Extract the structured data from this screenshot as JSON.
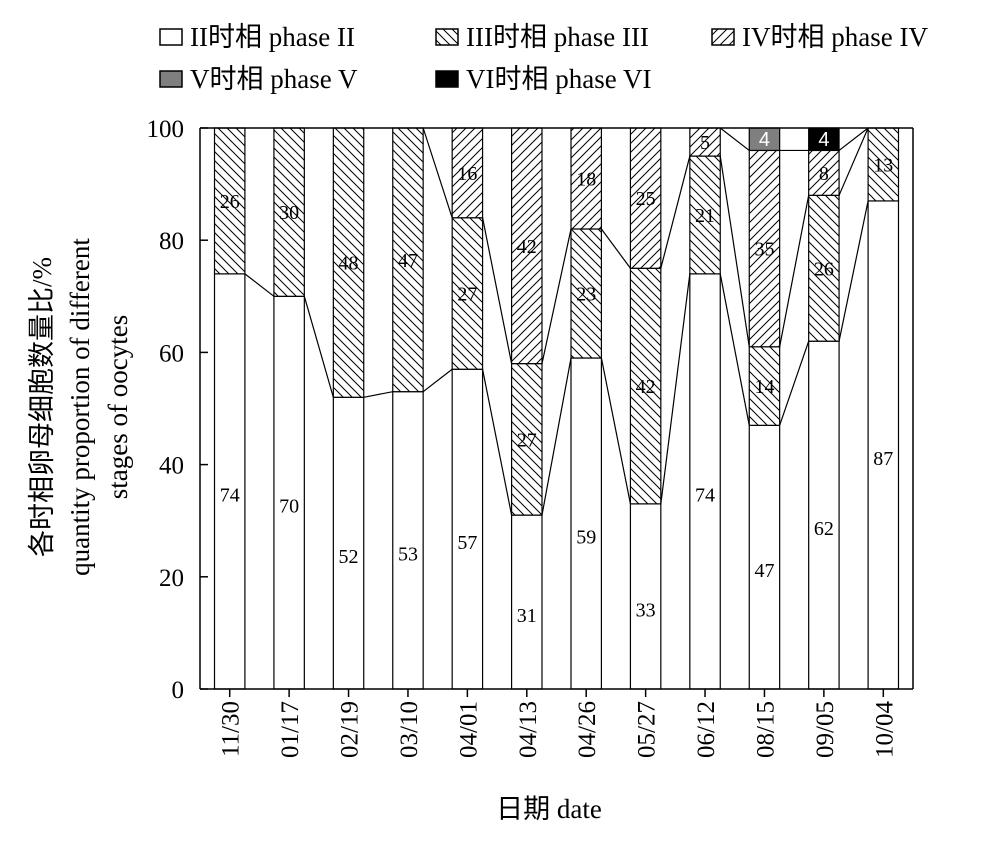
{
  "chart_data": {
    "type": "bar",
    "stacked": true,
    "xlabel": "日期 date",
    "ylabel_line1": "各时相卵母细胞数量比/%",
    "ylabel_line2": "quantity proportion of different",
    "ylabel_line3": "stages of oocytes",
    "ylim": [
      0,
      100
    ],
    "yticks": [
      "0",
      "20",
      "40",
      "60",
      "80",
      "100"
    ],
    "categories": [
      "11/30",
      "01/17",
      "02/19",
      "03/10",
      "04/01",
      "04/13",
      "04/26",
      "05/27",
      "06/12",
      "08/15",
      "09/05",
      "10/04"
    ],
    "series": [
      {
        "name": "II时相  phase II",
        "pattern": "white",
        "values": [
          74,
          70,
          52,
          53,
          57,
          31,
          59,
          33,
          74,
          47,
          62,
          87
        ]
      },
      {
        "name": "III时相 phase III",
        "pattern": "hatch-back",
        "values": [
          26,
          30,
          48,
          47,
          27,
          27,
          23,
          42,
          21,
          14,
          26,
          13
        ]
      },
      {
        "name": "IV时相 phase IV",
        "pattern": "hatch-fwd",
        "values": [
          0,
          0,
          0,
          0,
          16,
          42,
          18,
          25,
          5,
          35,
          8,
          0
        ]
      },
      {
        "name": "V时相 phase V",
        "color": "#7f7f7f",
        "values": [
          0,
          0,
          0,
          0,
          0,
          0,
          0,
          0,
          0,
          4,
          0,
          0
        ]
      },
      {
        "name": "VI时相 phase VI",
        "color": "#000000",
        "values": [
          0,
          0,
          0,
          0,
          0,
          0,
          0,
          0,
          0,
          0,
          4,
          0
        ]
      }
    ],
    "data_labels": [
      {
        "cat": 0,
        "series": 0,
        "text": "74"
      },
      {
        "cat": 0,
        "series": 1,
        "text": "26"
      },
      {
        "cat": 1,
        "series": 0,
        "text": "70"
      },
      {
        "cat": 1,
        "series": 1,
        "text": "30"
      },
      {
        "cat": 2,
        "series": 0,
        "text": "52"
      },
      {
        "cat": 2,
        "series": 1,
        "text": "48"
      },
      {
        "cat": 3,
        "series": 0,
        "text": "53"
      },
      {
        "cat": 3,
        "series": 1,
        "text": "47"
      },
      {
        "cat": 4,
        "series": 0,
        "text": "57"
      },
      {
        "cat": 4,
        "series": 1,
        "text": "27"
      },
      {
        "cat": 4,
        "series": 2,
        "text": "16"
      },
      {
        "cat": 5,
        "series": 0,
        "text": "31"
      },
      {
        "cat": 5,
        "series": 1,
        "text": "27"
      },
      {
        "cat": 5,
        "series": 2,
        "text": "42"
      },
      {
        "cat": 6,
        "series": 0,
        "text": "59"
      },
      {
        "cat": 6,
        "series": 1,
        "text": "23"
      },
      {
        "cat": 6,
        "series": 2,
        "text": "18"
      },
      {
        "cat": 7,
        "series": 0,
        "text": "33"
      },
      {
        "cat": 7,
        "series": 1,
        "text": "42"
      },
      {
        "cat": 7,
        "series": 2,
        "text": "25"
      },
      {
        "cat": 8,
        "series": 0,
        "text": "74"
      },
      {
        "cat": 8,
        "series": 1,
        "text": "21"
      },
      {
        "cat": 8,
        "series": 2,
        "text": "5"
      },
      {
        "cat": 9,
        "series": 0,
        "text": "47"
      },
      {
        "cat": 9,
        "series": 1,
        "text": "14"
      },
      {
        "cat": 9,
        "series": 2,
        "text": "35"
      },
      {
        "cat": 9,
        "series": 3,
        "text": "4"
      },
      {
        "cat": 10,
        "series": 0,
        "text": "62"
      },
      {
        "cat": 10,
        "series": 1,
        "text": "26"
      },
      {
        "cat": 10,
        "series": 2,
        "text": "8"
      },
      {
        "cat": 10,
        "series": 4,
        "text": "4"
      },
      {
        "cat": 11,
        "series": 0,
        "text": "87"
      },
      {
        "cat": 11,
        "series": 1,
        "text": "13"
      }
    ],
    "connector_lines": true,
    "legend_position": "top",
    "grid": false
  }
}
